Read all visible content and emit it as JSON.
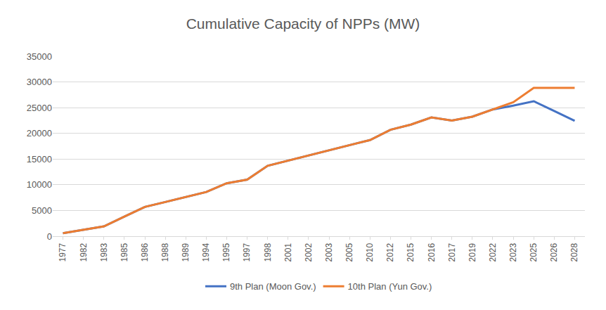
{
  "chart_data": {
    "type": "line",
    "title": "Cumulative Capacity of NPPs (MW)",
    "categories": [
      "1977",
      "1982",
      "1983",
      "1985",
      "1986",
      "1988",
      "1989",
      "1994",
      "1995",
      "1997",
      "1998",
      "2001",
      "2002",
      "2003",
      "2005",
      "2010",
      "2012",
      "2015",
      "2016",
      "2017",
      "2019",
      "2022",
      "2023",
      "2025",
      "2026",
      "2028"
    ],
    "series": [
      {
        "name": "9th Plan (Moon Gov.)",
        "color": "#4472c4",
        "values": [
          587,
          1266,
          1900,
          3800,
          5700,
          6650,
          7600,
          8600,
          10300,
          11000,
          13700,
          14700,
          15700,
          16700,
          17700,
          18700,
          20700,
          21700,
          23100,
          22500,
          23250,
          24650,
          25400,
          26250,
          24350,
          22450
        ]
      },
      {
        "name": "10th Plan (Yun Gov.)",
        "color": "#ed7d31",
        "values": [
          587,
          1266,
          1900,
          3800,
          5700,
          6650,
          7600,
          8600,
          10300,
          11000,
          13700,
          14700,
          15700,
          16700,
          17700,
          18700,
          20700,
          21700,
          23100,
          22500,
          23250,
          24650,
          26050,
          28850,
          28850,
          28850
        ]
      }
    ],
    "ylim": [
      0,
      35000
    ],
    "yticks": [
      0,
      5000,
      10000,
      15000,
      20000,
      25000,
      30000,
      35000
    ],
    "grid": true,
    "legend": "bottom"
  }
}
